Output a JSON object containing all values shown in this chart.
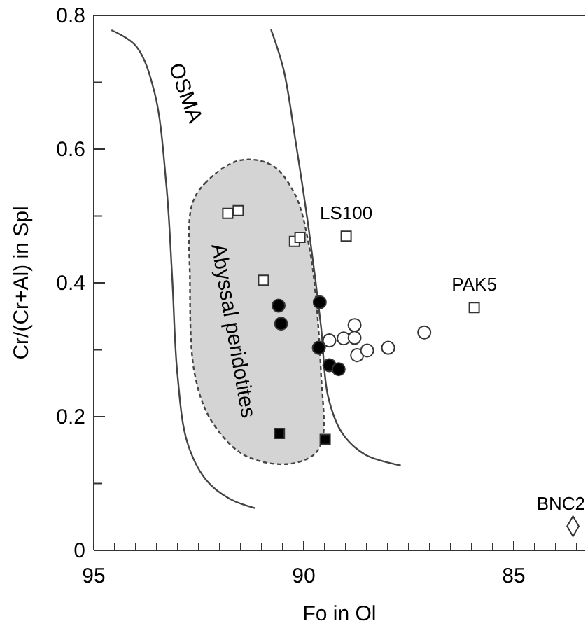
{
  "chart_data": {
    "type": "scatter",
    "xlabel": "Fo in Ol",
    "ylabel": "Cr/(Cr+Al) in Spl",
    "xlim": [
      95,
      83.3
    ],
    "ylim": [
      0,
      0.8
    ],
    "xticks": [
      95,
      {
        "value": 94.5,
        "label": null
      },
      {
        "value": 94,
        "label": null
      },
      {
        "value": 93.5,
        "label": null
      },
      {
        "value": 93,
        "label": null
      },
      {
        "value": 92.5,
        "label": null
      },
      {
        "value": 92,
        "label": null
      },
      {
        "value": 91.5,
        "label": null
      },
      {
        "value": 91,
        "label": null
      },
      {
        "value": 90.5,
        "label": null
      },
      90,
      {
        "value": 89.5,
        "label": null
      },
      {
        "value": 89,
        "label": null
      },
      {
        "value": 88.5,
        "label": null
      },
      {
        "value": 88,
        "label": null
      },
      {
        "value": 87.5,
        "label": null
      },
      {
        "value": 87,
        "label": null
      },
      {
        "value": 86.5,
        "label": null
      },
      {
        "value": 86,
        "label": null
      },
      {
        "value": 85.5,
        "label": null
      },
      85,
      {
        "value": 84.5,
        "label": null
      },
      {
        "value": 84,
        "label": null
      },
      {
        "value": 83.5,
        "label": null
      }
    ],
    "yticks": [
      0,
      {
        "value": 0.1,
        "label": null
      },
      0.2,
      {
        "value": 0.3,
        "label": null
      },
      0.4,
      {
        "value": 0.5,
        "label": null
      },
      0.6,
      {
        "value": 0.7,
        "label": null
      },
      0.8
    ],
    "series": [
      {
        "type": "area",
        "color": "#d4d4d4",
        "line_style": "dashed",
        "x": [
          91.54,
          92.32,
          92.66,
          92.71,
          92.6,
          92.21,
          91.43,
          90.42,
          89.76,
          89.55,
          89.59,
          89.7,
          89.87,
          90.2,
          90.76,
          91.54
        ],
        "values": [
          0.583,
          0.551,
          0.517,
          0.405,
          0.265,
          0.195,
          0.143,
          0.129,
          0.143,
          0.168,
          0.265,
          0.37,
          0.454,
          0.531,
          0.576,
          0.583
        ]
      },
      {
        "type": "line",
        "color": "#444444",
        "line_style": "solid",
        "x": [
          94.58,
          93.99,
          93.55,
          93.27,
          93.13,
          93.01,
          92.77,
          92.32,
          91.76,
          91.15
        ],
        "values": [
          0.778,
          0.754,
          0.684,
          0.545,
          0.405,
          0.265,
          0.161,
          0.105,
          0.077,
          0.063
        ]
      },
      {
        "type": "line",
        "color": "#444444",
        "line_style": "solid",
        "x": [
          90.78,
          90.48,
          90.2,
          89.87,
          89.59,
          89.42,
          89.08,
          88.53,
          87.69
        ],
        "values": [
          0.779,
          0.719,
          0.614,
          0.475,
          0.335,
          0.23,
          0.175,
          0.143,
          0.127
        ]
      },
      {
        "marker": "square",
        "color": "#ffffff",
        "x": [
          91.81,
          91.56,
          90.22,
          90.09,
          90.96,
          88.99,
          85.94
        ],
        "values": [
          0.504,
          0.508,
          0.462,
          0.468,
          0.404,
          0.47,
          0.363
        ]
      },
      {
        "marker": "circle",
        "color": "#ffffff",
        "x": [
          89.39,
          89.05,
          88.79,
          88.79,
          88.73,
          88.49,
          87.99,
          87.13
        ],
        "values": [
          0.314,
          0.317,
          0.337,
          0.318,
          0.292,
          0.299,
          0.303,
          0.326
        ]
      },
      {
        "marker": "circle",
        "color": "#000000",
        "x": [
          90.6,
          90.54,
          89.62,
          89.64,
          89.39,
          89.17
        ],
        "values": [
          0.366,
          0.339,
          0.371,
          0.303,
          0.277,
          0.271
        ]
      },
      {
        "marker": "square",
        "color": "#000000",
        "x": [
          90.58,
          89.49
        ],
        "values": [
          0.175,
          0.166
        ]
      },
      {
        "marker": "diamond",
        "color": "#ffffff",
        "x": [
          83.59
        ],
        "values": [
          0.036
        ]
      }
    ],
    "annotations": [
      "OSMA",
      "Abyssal peridotites",
      {
        "text": "LS100",
        "x": 88.99,
        "y": 0.47
      },
      {
        "text": "PAK5",
        "x": 85.94,
        "y": 0.363
      },
      {
        "text": "BNC2",
        "x": 83.59,
        "y": 0.036
      }
    ]
  }
}
